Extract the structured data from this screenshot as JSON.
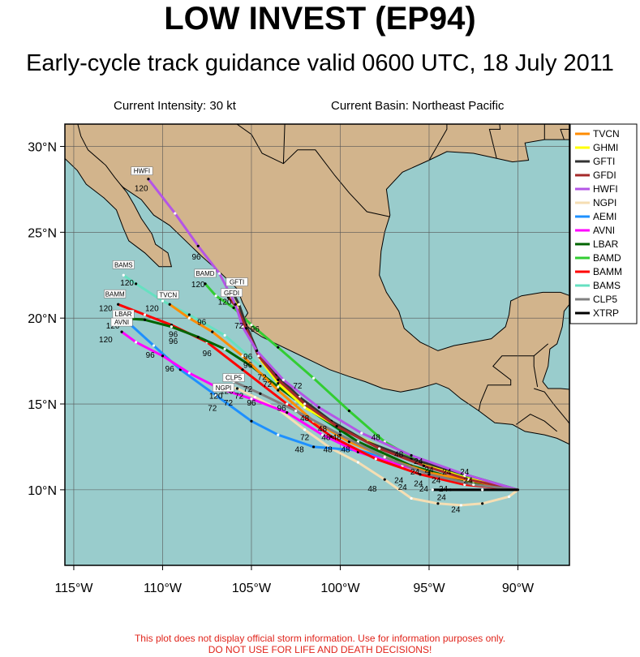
{
  "header": {
    "title": "LOW INVEST (EP94)",
    "subtitle": "Early-cycle track guidance valid 0600 UTC, 18 July 2011",
    "intensity": "Current Intensity: 30 kt",
    "basin": "Current Basin: Northeast Pacific"
  },
  "axes": {
    "x_ticks": [
      "115°W",
      "110°W",
      "105°W",
      "100°W",
      "95°W",
      "90°W"
    ],
    "x_values": [
      -115,
      -110,
      -105,
      -100,
      -95,
      -90
    ],
    "y_ticks": [
      "30°N",
      "25°N",
      "20°N",
      "15°N",
      "10°N"
    ],
    "y_values": [
      30,
      25,
      20,
      15,
      10
    ],
    "lon_range": [
      -115.5,
      -87.1
    ],
    "lat_range": [
      5.6,
      31.3
    ]
  },
  "colors": {
    "ocean": "#99cccc",
    "land": "#d2b48c",
    "border": "#000000"
  },
  "legend": [
    {
      "name": "TVCN",
      "color": "#ff8c00"
    },
    {
      "name": "GHMI",
      "color": "#ffff00"
    },
    {
      "name": "GFTI",
      "color": "#333333"
    },
    {
      "name": "GFDI",
      "color": "#a52a2a"
    },
    {
      "name": "HWFI",
      "color": "#b455e6"
    },
    {
      "name": "NGPI",
      "color": "#f5deb3"
    },
    {
      "name": "AEMI",
      "color": "#1e90ff"
    },
    {
      "name": "AVNI",
      "color": "#ff00ff"
    },
    {
      "name": "LBAR",
      "color": "#006400"
    },
    {
      "name": "BAMD",
      "color": "#32cd32"
    },
    {
      "name": "BAMM",
      "color": "#ff0000"
    },
    {
      "name": "BAMS",
      "color": "#66e0c0"
    },
    {
      "name": "CLP5",
      "color": "#808080"
    },
    {
      "name": "XTRP",
      "color": "#000000"
    }
  ],
  "tracks": [
    {
      "name": "NGPI",
      "color": "#f5deb3",
      "points": [
        [
          -90.0,
          10.0
        ],
        [
          -90.5,
          9.6
        ],
        [
          -92.0,
          9.2
        ],
        [
          -93.2,
          9.1
        ],
        [
          -94.5,
          9.2
        ],
        [
          -96.0,
          9.5
        ],
        [
          -97.5,
          10.6
        ],
        [
          -99.0,
          11.6
        ],
        [
          -100.5,
          12.4
        ],
        [
          -102.0,
          13.5
        ],
        [
          -103.5,
          14.7
        ],
        [
          -104.8,
          15.4
        ],
        [
          -105.8,
          15.9
        ],
        [
          -106.3,
          16.0
        ]
      ]
    },
    {
      "name": "AEMI",
      "color": "#1e90ff",
      "points": [
        [
          -90.0,
          10.0
        ],
        [
          -92.0,
          10.2
        ],
        [
          -94.0,
          10.6
        ],
        [
          -95.8,
          11.3
        ],
        [
          -97.5,
          11.9
        ],
        [
          -99.0,
          12.3
        ],
        [
          -101.5,
          12.5
        ],
        [
          -103.5,
          13.2
        ],
        [
          -105.0,
          14.0
        ],
        [
          -107.0,
          15.5
        ],
        [
          -109.0,
          17.0
        ],
        [
          -110.5,
          18.4
        ],
        [
          -112.0,
          19.8
        ]
      ]
    },
    {
      "name": "AVNI",
      "color": "#ff00ff",
      "points": [
        [
          -90.0,
          10.0
        ],
        [
          -92.0,
          10.4
        ],
        [
          -94.0,
          10.8
        ],
        [
          -96.5,
          11.4
        ],
        [
          -99.0,
          12.2
        ],
        [
          -101.0,
          13.2
        ],
        [
          -103.0,
          14.5
        ],
        [
          -105.0,
          15.3
        ],
        [
          -106.8,
          15.9
        ],
        [
          -108.5,
          16.8
        ],
        [
          -110.0,
          17.8
        ],
        [
          -111.5,
          18.6
        ],
        [
          -112.3,
          19.2
        ]
      ]
    },
    {
      "name": "BAMS",
      "color": "#66e0c0",
      "points": [
        [
          -90.0,
          10.0
        ],
        [
          -92.5,
          10.4
        ],
        [
          -95.0,
          11.0
        ],
        [
          -97.5,
          12.0
        ],
        [
          -100.0,
          13.4
        ],
        [
          -102.5,
          15.2
        ],
        [
          -104.5,
          17.2
        ],
        [
          -106.5,
          19.0
        ],
        [
          -108.5,
          20.2
        ],
        [
          -110.0,
          21.0
        ],
        [
          -111.5,
          22.0
        ],
        [
          -112.2,
          22.5
        ]
      ]
    },
    {
      "name": "BAMM",
      "color": "#ff0000",
      "points": [
        [
          -90.0,
          10.0
        ],
        [
          -93.0,
          10.3
        ],
        [
          -95.5,
          10.9
        ],
        [
          -98.0,
          11.8
        ],
        [
          -100.5,
          13.1
        ],
        [
          -103.0,
          15.0
        ],
        [
          -105.5,
          17.0
        ],
        [
          -107.5,
          18.6
        ],
        [
          -109.5,
          19.6
        ],
        [
          -111.0,
          20.2
        ],
        [
          -112.5,
          20.8
        ]
      ]
    },
    {
      "name": "LBAR",
      "color": "#006400",
      "points": [
        [
          -90.0,
          10.0
        ],
        [
          -93.0,
          10.5
        ],
        [
          -96.0,
          11.4
        ],
        [
          -99.0,
          12.8
        ],
        [
          -101.5,
          14.5
        ],
        [
          -103.5,
          16.0
        ],
        [
          -105.0,
          17.2
        ],
        [
          -106.5,
          18.2
        ],
        [
          -108.0,
          18.9
        ],
        [
          -109.5,
          19.5
        ],
        [
          -111.0,
          19.9
        ],
        [
          -112.3,
          20.0
        ]
      ]
    },
    {
      "name": "TVCN",
      "color": "#ff8c00",
      "points": [
        [
          -90.0,
          10.0
        ],
        [
          -92.5,
          10.5
        ],
        [
          -95.0,
          11.0
        ],
        [
          -97.0,
          11.7
        ],
        [
          -99.5,
          12.8
        ],
        [
          -101.5,
          14.0
        ],
        [
          -103.5,
          15.8
        ],
        [
          -105.5,
          17.8
        ],
        [
          -107.2,
          19.2
        ],
        [
          -108.5,
          20.0
        ],
        [
          -109.6,
          20.8
        ]
      ]
    },
    {
      "name": "BAMD",
      "color": "#32cd32",
      "points": [
        [
          -90.0,
          10.0
        ],
        [
          -93.0,
          10.8
        ],
        [
          -95.5,
          11.6
        ],
        [
          -97.5,
          12.8
        ],
        [
          -99.5,
          14.6
        ],
        [
          -101.5,
          16.5
        ],
        [
          -103.5,
          18.3
        ],
        [
          -105.0,
          19.6
        ],
        [
          -106.0,
          20.6
        ],
        [
          -107.0,
          21.3
        ],
        [
          -107.6,
          22.0
        ]
      ]
    },
    {
      "name": "GHMI",
      "color": "#ffff00",
      "points": [
        [
          -90.0,
          10.0
        ],
        [
          -93.0,
          10.7
        ],
        [
          -95.5,
          11.6
        ],
        [
          -97.8,
          12.5
        ],
        [
          -100.0,
          13.6
        ],
        [
          -102.0,
          14.8
        ],
        [
          -103.5,
          16.2
        ],
        [
          -104.5,
          17.6
        ],
        [
          -105.2,
          19.3
        ],
        [
          -105.6,
          20.5
        ],
        [
          -106.2,
          21.3
        ]
      ]
    },
    {
      "name": "GFTI",
      "color": "#333333",
      "points": [
        [
          -90.0,
          10.0
        ],
        [
          -93.0,
          10.9
        ],
        [
          -96.0,
          11.8
        ],
        [
          -98.5,
          12.8
        ],
        [
          -100.5,
          14.0
        ],
        [
          -102.3,
          15.4
        ],
        [
          -103.6,
          16.7
        ],
        [
          -104.6,
          17.9
        ],
        [
          -105.3,
          19.6
        ],
        [
          -105.7,
          20.8
        ],
        [
          -106.0,
          21.4
        ]
      ]
    },
    {
      "name": "GFDI",
      "color": "#a52a2a",
      "points": [
        [
          -90.0,
          10.0
        ],
        [
          -92.8,
          10.6
        ],
        [
          -95.3,
          11.4
        ],
        [
          -97.8,
          12.4
        ],
        [
          -100.2,
          13.7
        ],
        [
          -102.0,
          15.0
        ],
        [
          -103.5,
          16.4
        ],
        [
          -104.6,
          17.8
        ],
        [
          -105.3,
          19.4
        ],
        [
          -105.8,
          20.6
        ],
        [
          -106.3,
          21.2
        ]
      ]
    },
    {
      "name": "HWFI",
      "color": "#b455e6",
      "points": [
        [
          -90.0,
          10.0
        ],
        [
          -93.0,
          10.9
        ],
        [
          -96.0,
          12.0
        ],
        [
          -98.8,
          13.3
        ],
        [
          -101.2,
          14.8
        ],
        [
          -103.2,
          16.4
        ],
        [
          -104.7,
          18.1
        ],
        [
          -105.5,
          19.5
        ],
        [
          -105.9,
          20.8
        ],
        [
          -106.8,
          22.6
        ],
        [
          -108.0,
          24.2
        ],
        [
          -109.3,
          26.1
        ],
        [
          -110.8,
          28.1
        ]
      ]
    },
    {
      "name": "CLP5",
      "color": "#808080",
      "points": [
        [
          -90.0,
          10.0
        ],
        [
          -92.5,
          10.3
        ],
        [
          -95.0,
          10.9
        ],
        [
          -97.5,
          11.9
        ],
        [
          -100.0,
          13.2
        ],
        [
          -102.5,
          14.6
        ],
        [
          -104.5,
          15.6
        ],
        [
          -106.0,
          16.3
        ]
      ]
    },
    {
      "name": "XTRP",
      "color": "#000000",
      "points": [
        [
          -90.0,
          10.0
        ],
        [
          -92.0,
          10.0
        ],
        [
          -93.8,
          10.0
        ],
        [
          -94.8,
          10.0
        ]
      ]
    }
  ],
  "tags": [
    {
      "name": "HWFI",
      "lon": -110.8,
      "lat": 28.1,
      "dx": -8,
      "dy": -7
    },
    {
      "name": "BAMS",
      "lon": -112.2,
      "lat": 22.5,
      "dx": 0,
      "dy": -10
    },
    {
      "name": "BAMD",
      "lon": -107.6,
      "lat": 22.0,
      "dx": 0,
      "dy": -10
    },
    {
      "name": "GFTI",
      "lon": -106.0,
      "lat": 21.4,
      "dx": 4,
      "dy": -12
    },
    {
      "name": "GFDI",
      "lon": -106.3,
      "lat": 21.2,
      "dx": 4,
      "dy": -3
    },
    {
      "name": "BAMM",
      "lon": -112.5,
      "lat": 20.8,
      "dx": -4,
      "dy": -10
    },
    {
      "name": "TVCN",
      "lon": -109.6,
      "lat": 20.8,
      "dx": -2,
      "dy": -9
    },
    {
      "name": "LBAR",
      "lon": -112.3,
      "lat": 20.0,
      "dx": 2,
      "dy": -2
    },
    {
      "name": "AVNI",
      "lon": -112.3,
      "lat": 19.2,
      "dx": 0,
      "dy": -9
    },
    {
      "name": "CLP5",
      "lon": -106.0,
      "lat": 16.3,
      "dx": 0,
      "dy": -2
    },
    {
      "name": "NGPI",
      "lon": -106.3,
      "lat": 16.0,
      "dx": -6,
      "dy": 4
    }
  ],
  "tau_labels": [
    {
      "t": "120",
      "lon": -111.2,
      "lat": 27.4
    },
    {
      "t": "96",
      "lon": -108.1,
      "lat": 23.4
    },
    {
      "t": "120",
      "lon": -112.0,
      "lat": 21.9
    },
    {
      "t": "120",
      "lon": -108.0,
      "lat": 21.8
    },
    {
      "t": "120",
      "lon": -106.5,
      "lat": 20.8
    },
    {
      "t": "120",
      "lon": -110.6,
      "lat": 20.4
    },
    {
      "t": "120",
      "lon": -113.2,
      "lat": 20.4
    },
    {
      "t": "120",
      "lon": -112.8,
      "lat": 19.4
    },
    {
      "t": "96",
      "lon": -107.8,
      "lat": 19.6
    },
    {
      "t": "96",
      "lon": -109.4,
      "lat": 18.9
    },
    {
      "t": "96",
      "lon": -109.4,
      "lat": 18.5
    },
    {
      "t": "120",
      "lon": -113.2,
      "lat": 18.6
    },
    {
      "t": "96",
      "lon": -110.7,
      "lat": 17.7
    },
    {
      "t": "96",
      "lon": -107.5,
      "lat": 17.8
    },
    {
      "t": "96",
      "lon": -109.6,
      "lat": 16.9
    },
    {
      "t": "72",
      "lon": -105.7,
      "lat": 19.4
    },
    {
      "t": "96",
      "lon": -104.8,
      "lat": 19.2
    },
    {
      "t": "96",
      "lon": -105.2,
      "lat": 17.6
    },
    {
      "t": "96",
      "lon": -105.2,
      "lat": 17.1
    },
    {
      "t": "72",
      "lon": -104.4,
      "lat": 16.4
    },
    {
      "t": "72",
      "lon": -102.4,
      "lat": 15.9
    },
    {
      "t": "72",
      "lon": -104.1,
      "lat": 16.0
    },
    {
      "t": "72",
      "lon": -105.2,
      "lat": 15.7
    },
    {
      "t": "120",
      "lon": -107.0,
      "lat": 15.3
    },
    {
      "t": "120",
      "lon": -106.4,
      "lat": 15.6
    },
    {
      "t": "72",
      "lon": -106.3,
      "lat": 14.9
    },
    {
      "t": "72",
      "lon": -105.7,
      "lat": 15.3
    },
    {
      "t": "96",
      "lon": -105.0,
      "lat": 14.9
    },
    {
      "t": "72",
      "lon": -107.2,
      "lat": 14.6
    },
    {
      "t": "96",
      "lon": -103.3,
      "lat": 14.6
    },
    {
      "t": "48",
      "lon": -102.0,
      "lat": 14.0
    },
    {
      "t": "48",
      "lon": -101.0,
      "lat": 13.4
    },
    {
      "t": "48",
      "lon": -100.8,
      "lat": 12.9
    },
    {
      "t": "48",
      "lon": -100.2,
      "lat": 12.9
    },
    {
      "t": "72",
      "lon": -102.0,
      "lat": 12.9
    },
    {
      "t": "48",
      "lon": -102.3,
      "lat": 12.2
    },
    {
      "t": "48",
      "lon": -100.7,
      "lat": 12.2
    },
    {
      "t": "48",
      "lon": -99.7,
      "lat": 12.2
    },
    {
      "t": "48",
      "lon": -98.0,
      "lat": 12.9
    },
    {
      "t": "48",
      "lon": -96.7,
      "lat": 11.9
    },
    {
      "t": "24",
      "lon": -95.6,
      "lat": 11.5
    },
    {
      "t": "24",
      "lon": -95.0,
      "lat": 11.0
    },
    {
      "t": "24",
      "lon": -95.8,
      "lat": 10.9
    },
    {
      "t": "24",
      "lon": -94.0,
      "lat": 10.9
    },
    {
      "t": "24",
      "lon": -93.0,
      "lat": 10.9
    },
    {
      "t": "24",
      "lon": -94.6,
      "lat": 10.4
    },
    {
      "t": "24",
      "lon": -92.8,
      "lat": 10.4
    },
    {
      "t": "24",
      "lon": -95.6,
      "lat": 10.2
    },
    {
      "t": "24",
      "lon": -96.7,
      "lat": 10.4
    },
    {
      "t": "24",
      "lon": -96.5,
      "lat": 10.0
    },
    {
      "t": "24",
      "lon": -95.3,
      "lat": 9.9
    },
    {
      "t": "24",
      "lon": -94.2,
      "lat": 9.9
    },
    {
      "t": "48",
      "lon": -98.2,
      "lat": 9.9
    },
    {
      "t": "24",
      "lon": -94.3,
      "lat": 9.4
    },
    {
      "t": "24",
      "lon": -93.5,
      "lat": 8.7
    }
  ],
  "footer": {
    "line1": "This plot does not display official storm information. Use for information purposes only.",
    "line2": "DO NOT USE FOR LIFE AND DEATH DECISIONS!"
  }
}
